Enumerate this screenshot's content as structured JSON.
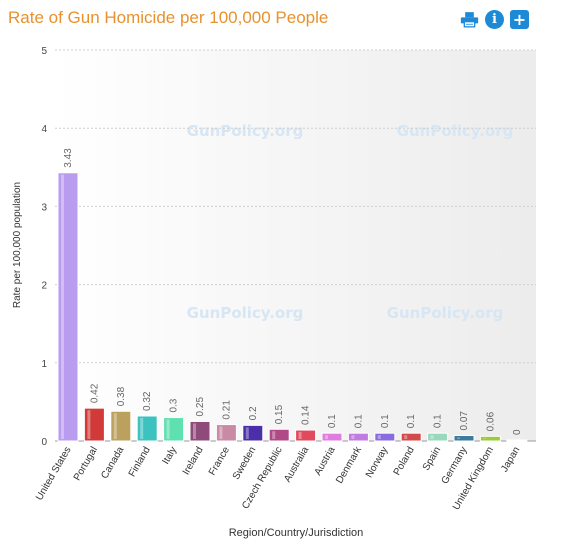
{
  "title": "Rate of Gun Homicide per 100,000 People",
  "toolbar": {
    "icons": [
      "print-icon",
      "info-icon",
      "add-icon"
    ],
    "info_glyph": "i",
    "add_glyph": "+"
  },
  "watermark": "GunPolicy.org",
  "chart_data": {
    "type": "bar",
    "title": "Rate of Gun Homicide per 100,000 People",
    "xlabel": "Region/Country/Jurisdiction",
    "ylabel": "Rate per 100,000 population",
    "ylim": [
      0,
      5
    ],
    "yticks": [
      0,
      1,
      2,
      3,
      4,
      5
    ],
    "grid": true,
    "categories": [
      "United States",
      "Portugal",
      "Canada",
      "Finland",
      "Italy",
      "Ireland",
      "France",
      "Sweden",
      "Czech Republic",
      "Australia",
      "Austria",
      "Denmark",
      "Norway",
      "Poland",
      "Spain",
      "Germany",
      "United Kingdom",
      "Japan"
    ],
    "values": [
      3.43,
      0.42,
      0.38,
      0.32,
      0.3,
      0.25,
      0.21,
      0.2,
      0.15,
      0.14,
      0.1,
      0.1,
      0.1,
      0.1,
      0.1,
      0.07,
      0.06,
      0
    ],
    "colors": [
      "#b99cf0",
      "#d23a3a",
      "#bba05e",
      "#3cc3c0",
      "#5fe0b0",
      "#8e4a7a",
      "#c98aa5",
      "#4b2fa8",
      "#b04a87",
      "#e04a5e",
      "#e07ce0",
      "#c07ce0",
      "#8a6ce0",
      "#d24a4a",
      "#9ad8bd",
      "#3a7a9e",
      "#9acb3a",
      "#cccccc"
    ]
  }
}
